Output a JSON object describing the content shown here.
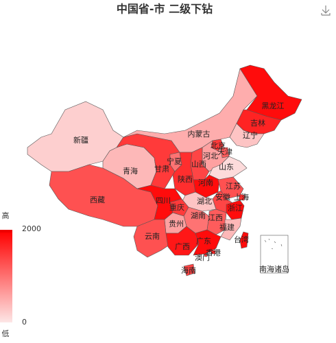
{
  "title": "中国省-市 二级下钻",
  "visual_map": {
    "max": 2000,
    "min": 0,
    "high_label": "高",
    "low_label": "低",
    "colors": [
      "#fde6e6",
      "#ff0000"
    ]
  },
  "inset_label": "南海诸岛",
  "regions": [
    {
      "name": "新疆",
      "value": 200
    },
    {
      "name": "西藏",
      "value": 1300
    },
    {
      "name": "青海",
      "value": 400
    },
    {
      "name": "甘肃",
      "value": 1500
    },
    {
      "name": "内蒙古",
      "value": 500
    },
    {
      "name": "黑龙江",
      "value": 1900
    },
    {
      "name": "吉林",
      "value": 1700
    },
    {
      "name": "辽宁",
      "value": 300
    },
    {
      "name": "北京",
      "value": 1500
    },
    {
      "name": "天津",
      "value": 1200
    },
    {
      "name": "河北",
      "value": 600
    },
    {
      "name": "山西",
      "value": 1400
    },
    {
      "name": "山东",
      "value": 100
    },
    {
      "name": "宁夏",
      "value": 1000
    },
    {
      "name": "陕西",
      "value": 1600
    },
    {
      "name": "河南",
      "value": 1900
    },
    {
      "name": "江苏",
      "value": 1300
    },
    {
      "name": "安徽",
      "value": 1400
    },
    {
      "name": "上海",
      "value": 1600
    },
    {
      "name": "浙江",
      "value": 1900
    },
    {
      "name": "湖北",
      "value": 300
    },
    {
      "name": "重庆",
      "value": 1500
    },
    {
      "name": "四川",
      "value": 1900
    },
    {
      "name": "湖南",
      "value": 1000
    },
    {
      "name": "江西",
      "value": 1200
    },
    {
      "name": "福建",
      "value": 400
    },
    {
      "name": "贵州",
      "value": 600
    },
    {
      "name": "云南",
      "value": 1300
    },
    {
      "name": "广西",
      "value": 1800
    },
    {
      "name": "广东",
      "value": 1900
    },
    {
      "name": "香港",
      "value": 1700
    },
    {
      "name": "澳门",
      "value": 1500
    },
    {
      "name": "海南",
      "value": 1400
    },
    {
      "name": "台湾",
      "value": 1900
    }
  ]
}
